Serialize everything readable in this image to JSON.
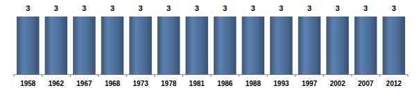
{
  "chart_data": {
    "type": "bar",
    "categories": [
      "1958",
      "1962",
      "1967",
      "1968",
      "1973",
      "1978",
      "1981",
      "1986",
      "1988",
      "1993",
      "1997",
      "2002",
      "2007",
      "2012"
    ],
    "values": [
      3,
      3,
      3,
      3,
      3,
      3,
      3,
      3,
      3,
      3,
      3,
      3,
      3,
      3
    ],
    "color": "#4c6b94",
    "ylim": [
      0,
      3
    ],
    "data_labels": true,
    "tick_labels": "x"
  }
}
